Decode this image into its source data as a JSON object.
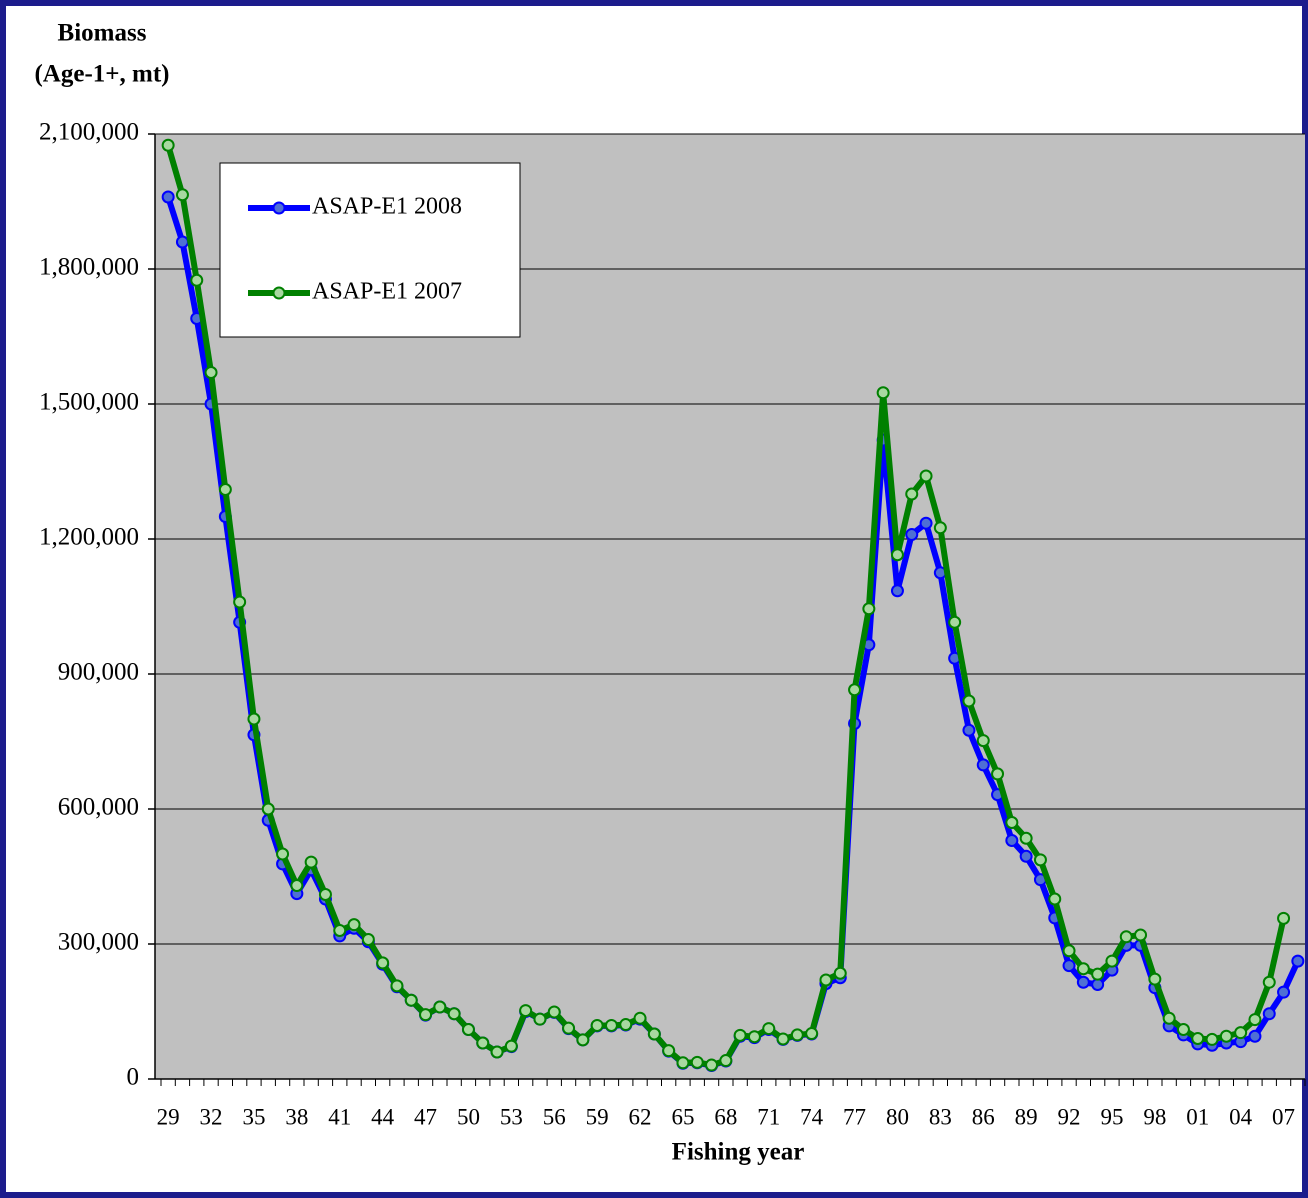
{
  "chart_data": {
    "type": "line",
    "ylabel": [
      "Biomass",
      "(Age-1+, mt)"
    ],
    "xlabel": "Fishing year",
    "categories": [
      "29",
      null,
      null,
      "32",
      null,
      null,
      "35",
      null,
      null,
      "38",
      null,
      null,
      "41",
      null,
      null,
      "44",
      null,
      null,
      "47",
      null,
      null,
      "50",
      null,
      null,
      "53",
      null,
      null,
      "56",
      null,
      null,
      "59",
      null,
      null,
      "62",
      null,
      null,
      "65",
      null,
      null,
      "68",
      null,
      null,
      "71",
      null,
      null,
      "74",
      null,
      null,
      "77",
      null,
      null,
      "80",
      null,
      null,
      "83",
      null,
      null,
      "86",
      null,
      null,
      "89",
      null,
      null,
      "92",
      null,
      null,
      "95",
      null,
      null,
      "98",
      null,
      null,
      "01",
      null,
      null,
      "04",
      null,
      null,
      "07",
      null
    ],
    "series": [
      {
        "name": "ASAP-E1 2008",
        "color": "#0000ff",
        "marker_fill": "#4f6fd4",
        "values": [
          1960000,
          1860000,
          1690000,
          1500000,
          1250000,
          1015000,
          765000,
          575000,
          478000,
          412000,
          465000,
          400000,
          318000,
          335000,
          305000,
          255000,
          205000,
          175000,
          142000,
          160000,
          145000,
          110000,
          80000,
          60000,
          72000,
          150000,
          133000,
          148000,
          112000,
          87000,
          118000,
          118000,
          120000,
          133000,
          100000,
          62000,
          35000,
          36000,
          30000,
          40000,
          95000,
          92000,
          110000,
          88000,
          97000,
          100000,
          212000,
          225000,
          790000,
          965000,
          1420000,
          1085000,
          1210000,
          1235000,
          1125000,
          935000,
          775000,
          698000,
          632000,
          530000,
          495000,
          443000,
          358000,
          252000,
          215000,
          210000,
          242000,
          297000,
          297000,
          203000,
          118000,
          98000,
          78000,
          75000,
          80000,
          83000,
          95000,
          145000,
          193000,
          262000
        ]
      },
      {
        "name": "ASAP-E1 2007",
        "color": "#008000",
        "marker_fill": "#a8d8a0",
        "values": [
          2075000,
          1965000,
          1775000,
          1570000,
          1310000,
          1060000,
          800000,
          600000,
          500000,
          430000,
          482000,
          410000,
          330000,
          343000,
          310000,
          258000,
          207000,
          175000,
          143000,
          160000,
          145000,
          110000,
          80000,
          60000,
          73000,
          152000,
          133000,
          149000,
          113000,
          87000,
          119000,
          119000,
          121000,
          135000,
          100000,
          63000,
          36000,
          37000,
          31000,
          41000,
          97000,
          94000,
          112000,
          89000,
          98000,
          101000,
          220000,
          235000,
          865000,
          1045000,
          1525000,
          1165000,
          1300000,
          1340000,
          1225000,
          1015000,
          840000,
          752000,
          678000,
          570000,
          535000,
          487000,
          400000,
          285000,
          245000,
          233000,
          262000,
          316000,
          320000,
          222000,
          135000,
          110000,
          90000,
          88000,
          95000,
          103000,
          132000,
          215000,
          357000,
          null
        ]
      }
    ],
    "ylim": [
      0,
      2100000
    ],
    "yticks": [
      0,
      {
        "value": 300000,
        "label": "300,000"
      },
      {
        "value": 600000,
        "label": "600,000"
      },
      {
        "value": 900000,
        "label": "900,000"
      },
      {
        "value": 1200000,
        "label": "1,200,000"
      },
      {
        "value": 1500000,
        "label": "1,500,000"
      },
      {
        "value": 1800000,
        "label": "1,800,000"
      },
      {
        "value": 2100000,
        "label": "2,100,000"
      }
    ],
    "grid": true,
    "plot_background": "#c0c0c0",
    "legend": "upper left"
  }
}
